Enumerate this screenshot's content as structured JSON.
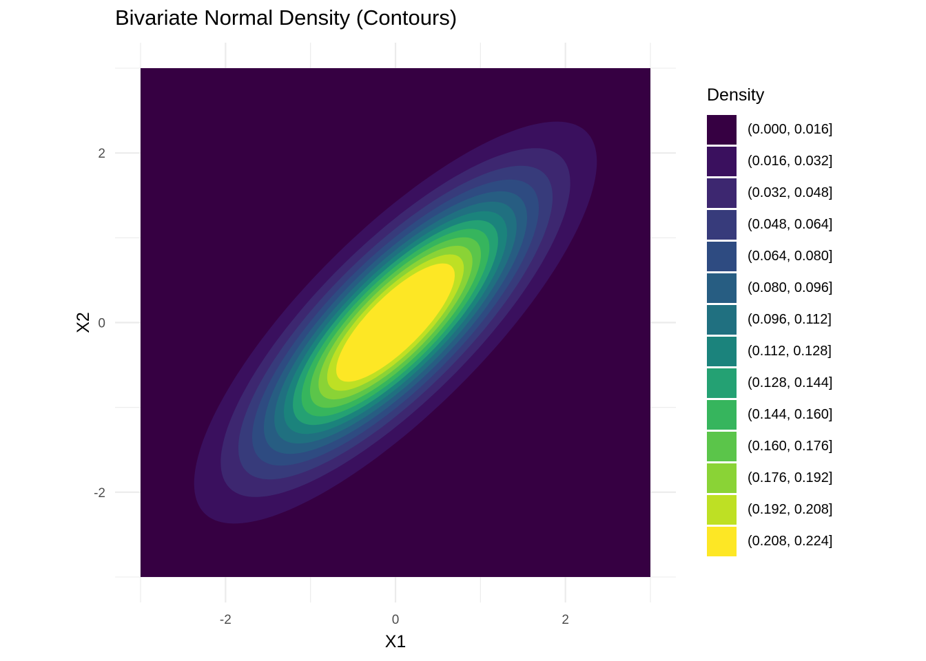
{
  "chart_data": {
    "type": "contour",
    "title": "Bivariate Normal Density (Contours)",
    "xlabel": "X1",
    "ylabel": "X2",
    "xlim": [
      -3,
      3
    ],
    "ylim": [
      -3,
      3
    ],
    "xticks": [
      -2,
      0,
      2
    ],
    "yticks": [
      -2,
      0,
      2
    ],
    "xtick_labels": [
      "-2",
      "0",
      "2"
    ],
    "ytick_labels": [
      "-2",
      "0",
      "2"
    ],
    "grid": true,
    "distribution": {
      "mean": [
        0,
        0
      ],
      "sd": [
        1,
        1
      ],
      "correlation": 0.8
    },
    "legend": {
      "title": "Density",
      "position": "right",
      "bins": [
        {
          "label": "(0.000, 0.016]",
          "lower": 0.0,
          "upper": 0.016,
          "color": "#360042"
        },
        {
          "label": "(0.016, 0.032]",
          "lower": 0.016,
          "upper": 0.032,
          "color": "#3a105e"
        },
        {
          "label": "(0.032, 0.048]",
          "lower": 0.032,
          "upper": 0.048,
          "color": "#3d2770"
        },
        {
          "label": "(0.048, 0.064]",
          "lower": 0.048,
          "upper": 0.064,
          "color": "#373b7b"
        },
        {
          "label": "(0.064, 0.080]",
          "lower": 0.064,
          "upper": 0.08,
          "color": "#2e4b81"
        },
        {
          "label": "(0.080, 0.096]",
          "lower": 0.08,
          "upper": 0.096,
          "color": "#275d82"
        },
        {
          "label": "(0.096, 0.112]",
          "lower": 0.096,
          "upper": 0.112,
          "color": "#207080"
        },
        {
          "label": "(0.112, 0.128]",
          "lower": 0.112,
          "upper": 0.128,
          "color": "#1b837c"
        },
        {
          "label": "(0.128, 0.144]",
          "lower": 0.128,
          "upper": 0.144,
          "color": "#24a173"
        },
        {
          "label": "(0.144, 0.160]",
          "lower": 0.144,
          "upper": 0.16,
          "color": "#36b55d"
        },
        {
          "label": "(0.160, 0.176]",
          "lower": 0.16,
          "upper": 0.176,
          "color": "#5bc54a"
        },
        {
          "label": "(0.176, 0.192]",
          "lower": 0.176,
          "upper": 0.192,
          "color": "#8ad336"
        },
        {
          "label": "(0.192, 0.208]",
          "lower": 0.192,
          "upper": 0.208,
          "color": "#bee024"
        },
        {
          "label": "(0.208, 0.224]",
          "lower": 0.208,
          "upper": 0.224,
          "color": "#fde725"
        }
      ]
    }
  }
}
